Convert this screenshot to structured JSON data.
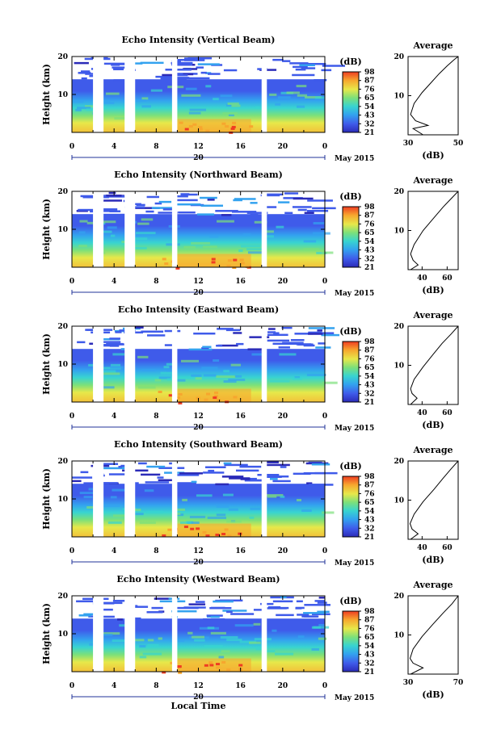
{
  "chart_data": [
    {
      "type": "heatmap",
      "title": "Echo Intensity (Vertical Beam)",
      "ylabel": "Height (km)",
      "xlabel": "",
      "x_ticks": [
        "0",
        "4",
        "8",
        "12",
        "16",
        "20",
        "0"
      ],
      "y_ticks": [
        "10",
        "20"
      ],
      "date_label": "20",
      "month_label": "May 2015",
      "colorbar_label": "(dB)",
      "colorbar_ticks": [
        "21",
        "32",
        "43",
        "54",
        "65",
        "76",
        "87",
        "98"
      ],
      "profile": {
        "title": "Average",
        "xlabel": "(dB)",
        "x_ticks": [
          "30",
          "50"
        ],
        "y_ticks": [
          "10",
          "20"
        ]
      }
    },
    {
      "type": "heatmap",
      "title": "Echo Intensity (Northward Beam)",
      "ylabel": "Height (km)",
      "xlabel": "",
      "x_ticks": [
        "0",
        "4",
        "8",
        "12",
        "16",
        "20",
        "0"
      ],
      "y_ticks": [
        "10",
        "20"
      ],
      "date_label": "20",
      "month_label": "May 2015",
      "colorbar_label": "(dB)",
      "colorbar_ticks": [
        "21",
        "32",
        "43",
        "54",
        "65",
        "76",
        "87",
        "98"
      ],
      "profile": {
        "title": "Average",
        "xlabel": "(dB)",
        "x_ticks": [
          "40",
          "60"
        ],
        "y_ticks": [
          "10",
          "20"
        ]
      }
    },
    {
      "type": "heatmap",
      "title": "Echo Intensity (Eastward Beam)",
      "ylabel": "Height (km)",
      "xlabel": "",
      "x_ticks": [
        "0",
        "4",
        "8",
        "12",
        "16",
        "20",
        "0"
      ],
      "y_ticks": [
        "10",
        "20"
      ],
      "date_label": "20",
      "month_label": "May 2015",
      "colorbar_label": "(dB)",
      "colorbar_ticks": [
        "21",
        "32",
        "43",
        "54",
        "65",
        "76",
        "87",
        "98"
      ],
      "profile": {
        "title": "Average",
        "xlabel": "(dB)",
        "x_ticks": [
          "40",
          "60"
        ],
        "y_ticks": [
          "10",
          "20"
        ]
      }
    },
    {
      "type": "heatmap",
      "title": "Echo Intensity (Southward Beam)",
      "ylabel": "Height (km)",
      "xlabel": "",
      "x_ticks": [
        "0",
        "4",
        "8",
        "12",
        "16",
        "20",
        "0"
      ],
      "y_ticks": [
        "10",
        "20"
      ],
      "date_label": "20",
      "month_label": "May 2015",
      "colorbar_label": "(dB)",
      "colorbar_ticks": [
        "21",
        "32",
        "43",
        "54",
        "65",
        "76",
        "87",
        "98"
      ],
      "profile": {
        "title": "Average",
        "xlabel": "(dB)",
        "x_ticks": [
          "40",
          "60"
        ],
        "y_ticks": [
          "10",
          "20"
        ]
      }
    },
    {
      "type": "heatmap",
      "title": "Echo Intensity (Westward Beam)",
      "ylabel": "Height (km)",
      "xlabel": "Local Time",
      "x_ticks": [
        "0",
        "4",
        "8",
        "12",
        "16",
        "20",
        "0"
      ],
      "y_ticks": [
        "10",
        "20"
      ],
      "date_label": "20",
      "month_label": "May 2015",
      "colorbar_label": "(dB)",
      "colorbar_ticks": [
        "21",
        "32",
        "43",
        "54",
        "65",
        "76",
        "87",
        "98"
      ],
      "profile": {
        "title": "Average",
        "xlabel": "(dB)",
        "x_ticks": [
          "30",
          "70"
        ],
        "y_ticks": [
          "10",
          "20"
        ]
      }
    }
  ],
  "colors": {
    "scale": [
      "#2b2bb8",
      "#3f5bea",
      "#33a2ef",
      "#38d4d0",
      "#7ce07a",
      "#e7e84a",
      "#f7a62e",
      "#ef3d22"
    ],
    "line": "#000000",
    "gap": "#ffffff"
  },
  "data_gaps_hours": [
    [
      2,
      3
    ],
    [
      5,
      6
    ],
    [
      9.5,
      10
    ],
    [
      18,
      18.5
    ]
  ]
}
